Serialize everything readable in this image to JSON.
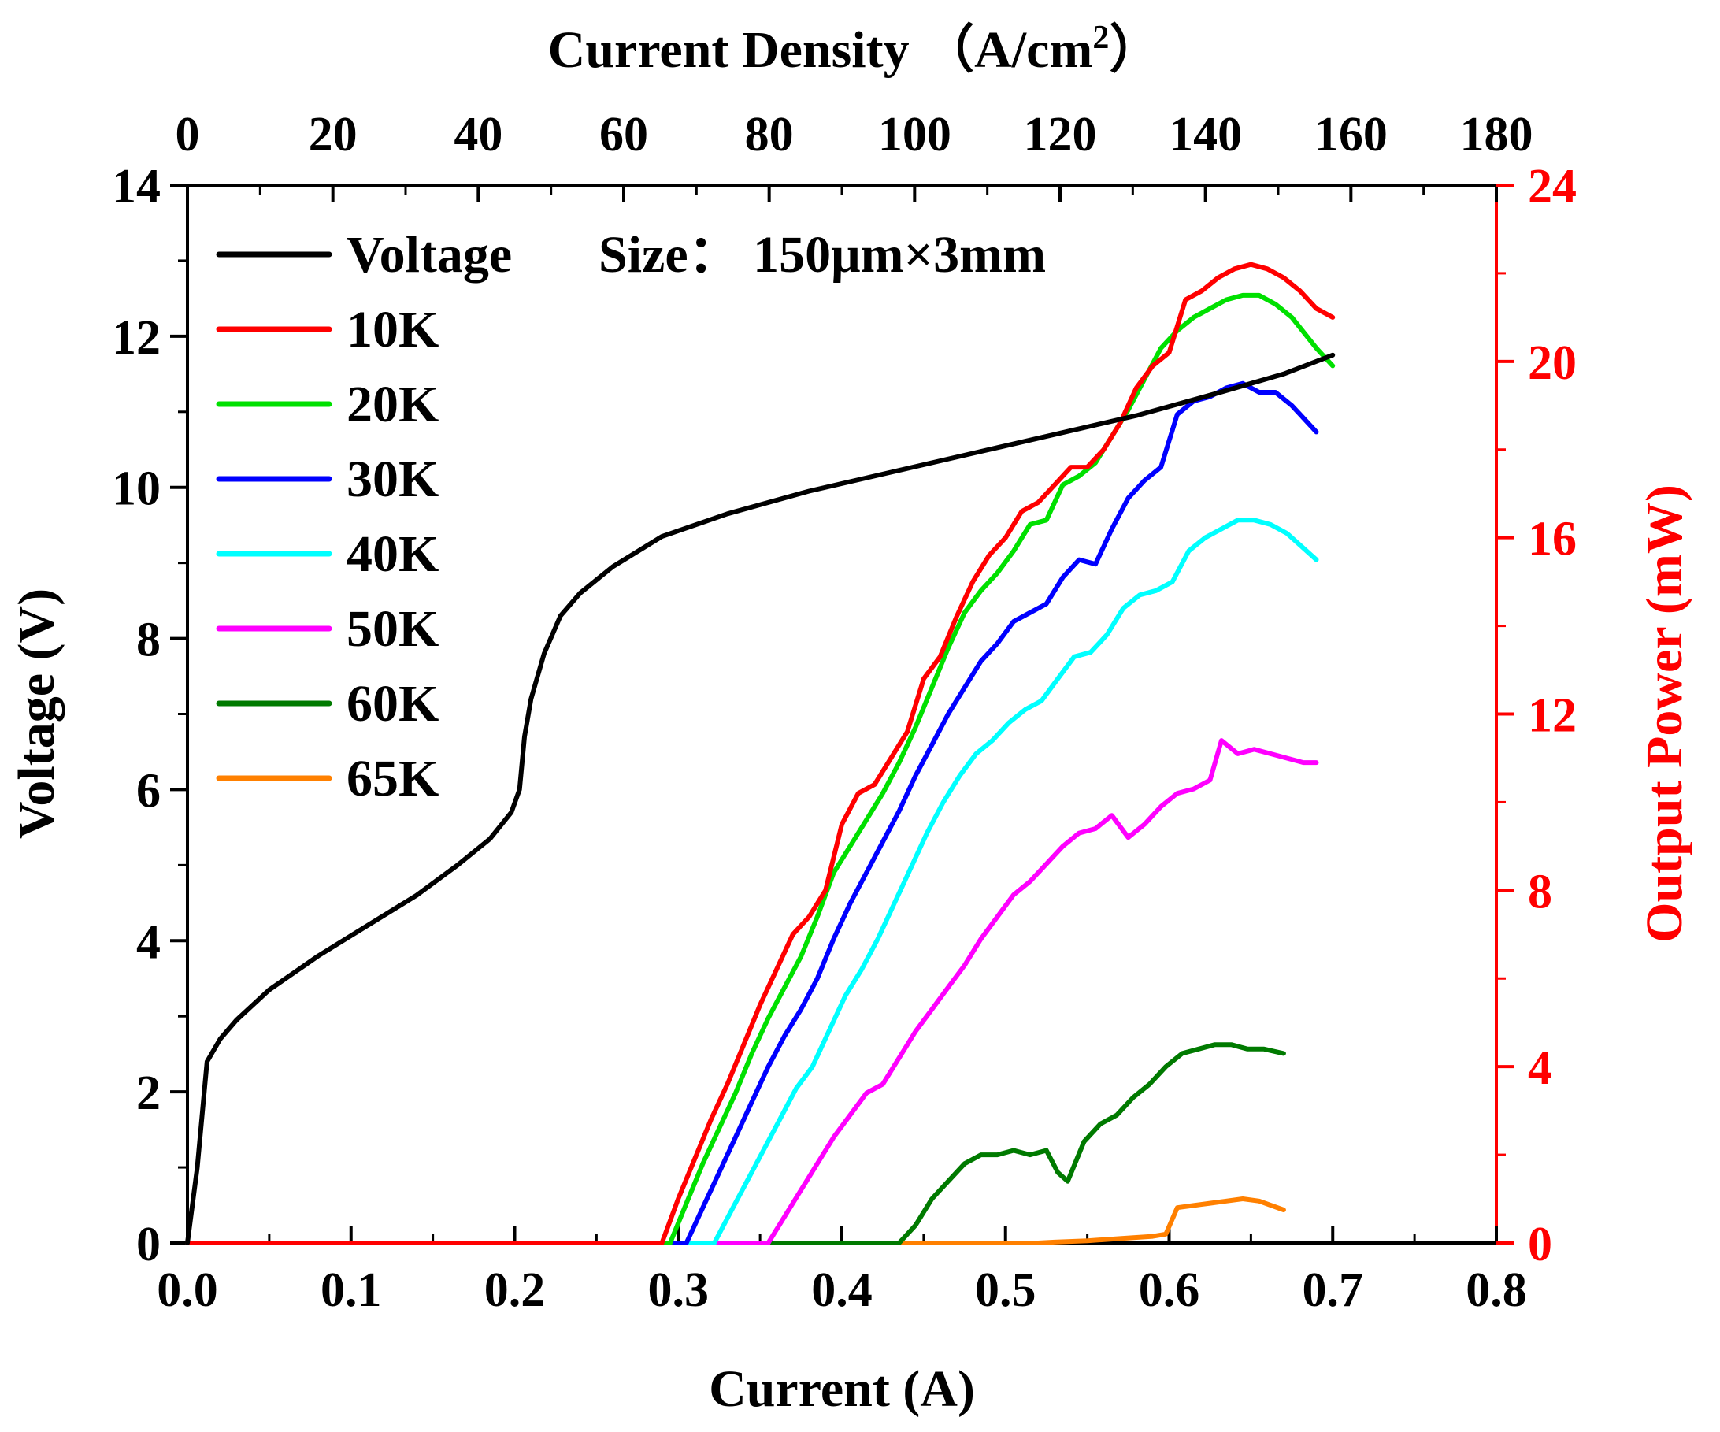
{
  "chart_data": {
    "type": "line",
    "top_axis": {
      "label": "Current Density （A/cm",
      "label_sup": "2",
      "label_end": "）",
      "range": [
        0,
        180
      ],
      "ticks": [
        "0",
        "20",
        "40",
        "60",
        "80",
        "100",
        "120",
        "140",
        "160",
        "180"
      ]
    },
    "x_axis": {
      "label": "Current (A)",
      "range": [
        0,
        0.8
      ],
      "ticks": [
        "0.0",
        "0.1",
        "0.2",
        "0.3",
        "0.4",
        "0.5",
        "0.6",
        "0.7",
        "0.8"
      ]
    },
    "y_left": {
      "label": "Voltage (V)",
      "range": [
        0,
        14
      ],
      "ticks": [
        "0",
        "2",
        "4",
        "6",
        "8",
        "10",
        "12",
        "14"
      ]
    },
    "y_right": {
      "label": "Output Power (mW)",
      "range": [
        0,
        24
      ],
      "ticks": [
        "0",
        "4",
        "8",
        "12",
        "16",
        "20",
        "24"
      ],
      "color": "#ff0000"
    },
    "annotation": "Size：  150μm×3mm",
    "voltage": {
      "name": "Voltage",
      "color": "#000000",
      "points": [
        [
          0.0,
          0.0
        ],
        [
          0.006,
          1.0
        ],
        [
          0.012,
          2.4
        ],
        [
          0.02,
          2.7
        ],
        [
          0.03,
          2.95
        ],
        [
          0.05,
          3.35
        ],
        [
          0.08,
          3.8
        ],
        [
          0.11,
          4.2
        ],
        [
          0.14,
          4.6
        ],
        [
          0.165,
          5.0
        ],
        [
          0.185,
          5.35
        ],
        [
          0.198,
          5.7
        ],
        [
          0.203,
          6.0
        ],
        [
          0.206,
          6.7
        ],
        [
          0.21,
          7.2
        ],
        [
          0.218,
          7.8
        ],
        [
          0.228,
          8.3
        ],
        [
          0.24,
          8.6
        ],
        [
          0.26,
          8.95
        ],
        [
          0.29,
          9.35
        ],
        [
          0.33,
          9.65
        ],
        [
          0.38,
          9.95
        ],
        [
          0.43,
          10.2
        ],
        [
          0.48,
          10.45
        ],
        [
          0.53,
          10.7
        ],
        [
          0.58,
          10.95
        ],
        [
          0.63,
          11.25
        ],
        [
          0.67,
          11.5
        ],
        [
          0.7,
          11.75
        ]
      ]
    },
    "series": [
      {
        "name": "10K",
        "color": "#ff0000",
        "points": [
          [
            0,
            0
          ],
          [
            0.29,
            0
          ],
          [
            0.3,
            1.0
          ],
          [
            0.31,
            1.9
          ],
          [
            0.32,
            2.8
          ],
          [
            0.33,
            3.6
          ],
          [
            0.34,
            4.5
          ],
          [
            0.35,
            5.4
          ],
          [
            0.36,
            6.2
          ],
          [
            0.37,
            7.0
          ],
          [
            0.38,
            7.4
          ],
          [
            0.39,
            8.0
          ],
          [
            0.4,
            9.5
          ],
          [
            0.41,
            10.2
          ],
          [
            0.42,
            10.4
          ],
          [
            0.43,
            11.0
          ],
          [
            0.44,
            11.6
          ],
          [
            0.45,
            12.8
          ],
          [
            0.46,
            13.3
          ],
          [
            0.47,
            14.2
          ],
          [
            0.48,
            15.0
          ],
          [
            0.49,
            15.6
          ],
          [
            0.5,
            16.0
          ],
          [
            0.51,
            16.6
          ],
          [
            0.52,
            16.8
          ],
          [
            0.53,
            17.2
          ],
          [
            0.54,
            17.6
          ],
          [
            0.55,
            17.6
          ],
          [
            0.56,
            18.0
          ],
          [
            0.57,
            18.6
          ],
          [
            0.58,
            19.4
          ],
          [
            0.59,
            19.9
          ],
          [
            0.6,
            20.2
          ],
          [
            0.61,
            21.4
          ],
          [
            0.62,
            21.6
          ],
          [
            0.63,
            21.9
          ],
          [
            0.64,
            22.1
          ],
          [
            0.65,
            22.2
          ],
          [
            0.66,
            22.1
          ],
          [
            0.67,
            21.9
          ],
          [
            0.68,
            21.6
          ],
          [
            0.69,
            21.2
          ],
          [
            0.7,
            21.0
          ]
        ]
      },
      {
        "name": "20K",
        "color": "#00e000",
        "points": [
          [
            0,
            0
          ],
          [
            0.295,
            0
          ],
          [
            0.305,
            0.9
          ],
          [
            0.315,
            1.8
          ],
          [
            0.325,
            2.6
          ],
          [
            0.335,
            3.4
          ],
          [
            0.345,
            4.3
          ],
          [
            0.355,
            5.1
          ],
          [
            0.365,
            5.8
          ],
          [
            0.375,
            6.5
          ],
          [
            0.385,
            7.4
          ],
          [
            0.395,
            8.4
          ],
          [
            0.405,
            9.0
          ],
          [
            0.415,
            9.6
          ],
          [
            0.425,
            10.2
          ],
          [
            0.435,
            10.9
          ],
          [
            0.445,
            11.7
          ],
          [
            0.455,
            12.6
          ],
          [
            0.465,
            13.5
          ],
          [
            0.475,
            14.3
          ],
          [
            0.485,
            14.8
          ],
          [
            0.495,
            15.2
          ],
          [
            0.505,
            15.7
          ],
          [
            0.515,
            16.3
          ],
          [
            0.525,
            16.4
          ],
          [
            0.535,
            17.2
          ],
          [
            0.545,
            17.4
          ],
          [
            0.555,
            17.7
          ],
          [
            0.565,
            18.3
          ],
          [
            0.575,
            18.9
          ],
          [
            0.585,
            19.6
          ],
          [
            0.595,
            20.3
          ],
          [
            0.605,
            20.7
          ],
          [
            0.615,
            21.0
          ],
          [
            0.625,
            21.2
          ],
          [
            0.635,
            21.4
          ],
          [
            0.645,
            21.5
          ],
          [
            0.655,
            21.5
          ],
          [
            0.665,
            21.3
          ],
          [
            0.675,
            21.0
          ],
          [
            0.69,
            20.3
          ],
          [
            0.7,
            19.9
          ]
        ]
      },
      {
        "name": "30K",
        "color": "#0000ff",
        "points": [
          [
            0,
            0
          ],
          [
            0.305,
            0
          ],
          [
            0.315,
            0.8
          ],
          [
            0.325,
            1.6
          ],
          [
            0.335,
            2.4
          ],
          [
            0.345,
            3.2
          ],
          [
            0.355,
            4.0
          ],
          [
            0.365,
            4.7
          ],
          [
            0.375,
            5.3
          ],
          [
            0.385,
            6.0
          ],
          [
            0.395,
            6.9
          ],
          [
            0.405,
            7.7
          ],
          [
            0.415,
            8.4
          ],
          [
            0.425,
            9.1
          ],
          [
            0.435,
            9.8
          ],
          [
            0.445,
            10.6
          ],
          [
            0.455,
            11.3
          ],
          [
            0.465,
            12.0
          ],
          [
            0.475,
            12.6
          ],
          [
            0.485,
            13.2
          ],
          [
            0.495,
            13.6
          ],
          [
            0.505,
            14.1
          ],
          [
            0.515,
            14.3
          ],
          [
            0.525,
            14.5
          ],
          [
            0.535,
            15.1
          ],
          [
            0.545,
            15.5
          ],
          [
            0.555,
            15.4
          ],
          [
            0.565,
            16.2
          ],
          [
            0.575,
            16.9
          ],
          [
            0.585,
            17.3
          ],
          [
            0.595,
            17.6
          ],
          [
            0.605,
            18.8
          ],
          [
            0.615,
            19.1
          ],
          [
            0.625,
            19.2
          ],
          [
            0.635,
            19.4
          ],
          [
            0.645,
            19.5
          ],
          [
            0.655,
            19.3
          ],
          [
            0.665,
            19.3
          ],
          [
            0.675,
            19.0
          ],
          [
            0.69,
            18.4
          ]
        ]
      },
      {
        "name": "40K",
        "color": "#00ffff",
        "points": [
          [
            0,
            0
          ],
          [
            0.322,
            0
          ],
          [
            0.332,
            0.7
          ],
          [
            0.342,
            1.4
          ],
          [
            0.352,
            2.1
          ],
          [
            0.362,
            2.8
          ],
          [
            0.372,
            3.5
          ],
          [
            0.382,
            4.0
          ],
          [
            0.392,
            4.8
          ],
          [
            0.402,
            5.6
          ],
          [
            0.412,
            6.2
          ],
          [
            0.422,
            6.9
          ],
          [
            0.432,
            7.7
          ],
          [
            0.442,
            8.5
          ],
          [
            0.452,
            9.3
          ],
          [
            0.462,
            10.0
          ],
          [
            0.472,
            10.6
          ],
          [
            0.482,
            11.1
          ],
          [
            0.492,
            11.4
          ],
          [
            0.502,
            11.8
          ],
          [
            0.512,
            12.1
          ],
          [
            0.522,
            12.3
          ],
          [
            0.532,
            12.8
          ],
          [
            0.542,
            13.3
          ],
          [
            0.552,
            13.4
          ],
          [
            0.562,
            13.8
          ],
          [
            0.572,
            14.4
          ],
          [
            0.582,
            14.7
          ],
          [
            0.592,
            14.8
          ],
          [
            0.602,
            15.0
          ],
          [
            0.612,
            15.7
          ],
          [
            0.622,
            16.0
          ],
          [
            0.632,
            16.2
          ],
          [
            0.642,
            16.4
          ],
          [
            0.652,
            16.4
          ],
          [
            0.662,
            16.3
          ],
          [
            0.672,
            16.1
          ],
          [
            0.69,
            15.5
          ]
        ]
      },
      {
        "name": "50K",
        "color": "#ff00ff",
        "points": [
          [
            0,
            0
          ],
          [
            0.355,
            0
          ],
          [
            0.365,
            0.6
          ],
          [
            0.375,
            1.2
          ],
          [
            0.385,
            1.8
          ],
          [
            0.395,
            2.4
          ],
          [
            0.405,
            2.9
          ],
          [
            0.415,
            3.4
          ],
          [
            0.425,
            3.6
          ],
          [
            0.435,
            4.2
          ],
          [
            0.445,
            4.8
          ],
          [
            0.455,
            5.3
          ],
          [
            0.465,
            5.8
          ],
          [
            0.475,
            6.3
          ],
          [
            0.485,
            6.9
          ],
          [
            0.495,
            7.4
          ],
          [
            0.505,
            7.9
          ],
          [
            0.515,
            8.2
          ],
          [
            0.525,
            8.6
          ],
          [
            0.535,
            9.0
          ],
          [
            0.545,
            9.3
          ],
          [
            0.555,
            9.4
          ],
          [
            0.565,
            9.7
          ],
          [
            0.575,
            9.2
          ],
          [
            0.585,
            9.5
          ],
          [
            0.595,
            9.9
          ],
          [
            0.605,
            10.2
          ],
          [
            0.615,
            10.3
          ],
          [
            0.625,
            10.5
          ],
          [
            0.632,
            11.4
          ],
          [
            0.642,
            11.1
          ],
          [
            0.652,
            11.2
          ],
          [
            0.662,
            11.1
          ],
          [
            0.672,
            11.0
          ],
          [
            0.682,
            10.9
          ],
          [
            0.69,
            10.9
          ]
        ]
      },
      {
        "name": "60K",
        "color": "#007a00",
        "points": [
          [
            0,
            0
          ],
          [
            0.435,
            0
          ],
          [
            0.445,
            0.4
          ],
          [
            0.455,
            1.0
          ],
          [
            0.465,
            1.4
          ],
          [
            0.475,
            1.8
          ],
          [
            0.485,
            2.0
          ],
          [
            0.495,
            2.0
          ],
          [
            0.505,
            2.1
          ],
          [
            0.515,
            2.0
          ],
          [
            0.525,
            2.1
          ],
          [
            0.532,
            1.6
          ],
          [
            0.538,
            1.4
          ],
          [
            0.548,
            2.3
          ],
          [
            0.558,
            2.7
          ],
          [
            0.568,
            2.9
          ],
          [
            0.578,
            3.3
          ],
          [
            0.588,
            3.6
          ],
          [
            0.598,
            4.0
          ],
          [
            0.608,
            4.3
          ],
          [
            0.618,
            4.4
          ],
          [
            0.628,
            4.5
          ],
          [
            0.638,
            4.5
          ],
          [
            0.648,
            4.4
          ],
          [
            0.658,
            4.4
          ],
          [
            0.67,
            4.3
          ]
        ]
      },
      {
        "name": "65K",
        "color": "#ff8000",
        "points": [
          [
            0,
            0
          ],
          [
            0.52,
            0
          ],
          [
            0.53,
            0.02
          ],
          [
            0.55,
            0.05
          ],
          [
            0.57,
            0.1
          ],
          [
            0.59,
            0.15
          ],
          [
            0.598,
            0.2
          ],
          [
            0.605,
            0.8
          ],
          [
            0.615,
            0.85
          ],
          [
            0.625,
            0.9
          ],
          [
            0.635,
            0.95
          ],
          [
            0.645,
            1.0
          ],
          [
            0.655,
            0.95
          ],
          [
            0.67,
            0.75
          ]
        ]
      }
    ]
  }
}
